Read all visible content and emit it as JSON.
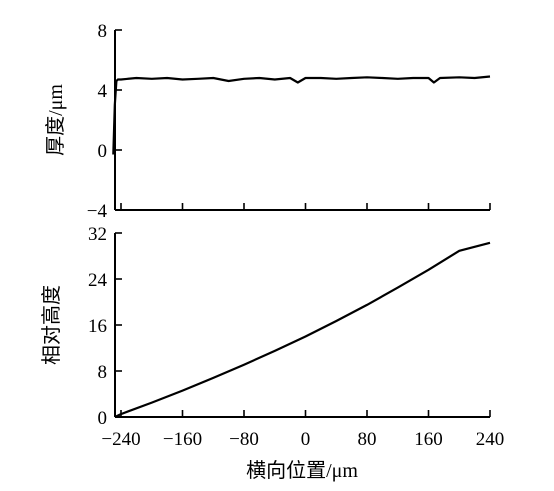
{
  "chart_data": [
    {
      "type": "line",
      "ylabel": "厚度/μm",
      "xlabel": "",
      "xlim": [
        -240,
        240
      ],
      "ylim": [
        -4,
        8
      ],
      "yticks": [
        "8",
        "4",
        "0",
        "−4"
      ],
      "xticks": [
        -240,
        -160,
        -80,
        0,
        80,
        160,
        240
      ],
      "series": [
        {
          "x": [
            -250,
            -248,
            -246,
            -244,
            -240,
            -220,
            -200,
            -180,
            -160,
            -140,
            -120,
            -100,
            -80,
            -60,
            -40,
            -20,
            -10,
            0,
            20,
            40,
            60,
            80,
            100,
            120,
            140,
            160,
            167,
            175,
            200,
            220,
            240
          ],
          "values": [
            -0.3,
            3.0,
            4.6,
            4.7,
            4.7,
            4.8,
            4.75,
            4.8,
            4.7,
            4.75,
            4.8,
            4.6,
            4.75,
            4.8,
            4.7,
            4.8,
            4.5,
            4.8,
            4.8,
            4.75,
            4.8,
            4.85,
            4.8,
            4.75,
            4.8,
            4.8,
            4.5,
            4.8,
            4.85,
            4.8,
            4.9
          ]
        }
      ]
    },
    {
      "type": "line",
      "ylabel": "相对高度",
      "xlabel": "横向位置/μm",
      "xlim": [
        -240,
        240
      ],
      "ylim": [
        0,
        32
      ],
      "yticks": [
        "32",
        "24",
        "16",
        "8",
        "0"
      ],
      "xtick_labels": [
        "−240",
        "−160",
        "−80",
        "0",
        "80",
        "160",
        "240"
      ],
      "xticks": [
        -240,
        -160,
        -80,
        0,
        80,
        160,
        240
      ],
      "series": [
        {
          "x": [
            -248,
            -240,
            -200,
            -160,
            -120,
            -80,
            -40,
            0,
            40,
            80,
            120,
            160,
            200,
            240
          ],
          "values": [
            0,
            0.5,
            2.5,
            4.6,
            6.8,
            9.1,
            11.5,
            14.0,
            16.7,
            19.5,
            22.5,
            25.6,
            28.9,
            30.3
          ]
        }
      ]
    }
  ]
}
